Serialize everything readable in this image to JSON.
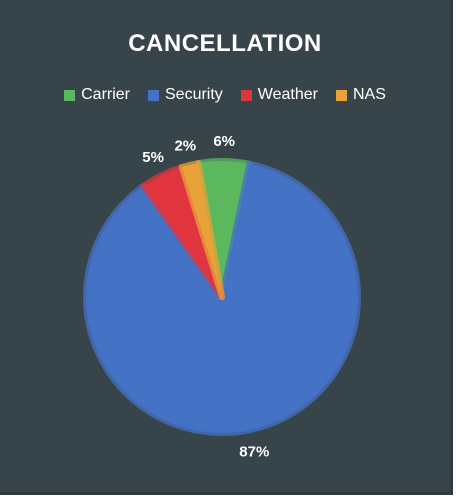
{
  "chart_data": {
    "type": "pie",
    "title": "CANCELLATION",
    "categories": [
      "Carrier",
      "Security",
      "Weather",
      "NAS"
    ],
    "values": [
      6,
      87,
      5,
      2
    ],
    "data_labels": [
      "6%",
      "87%",
      "5%",
      "2%"
    ],
    "colors": [
      "#5cb85c",
      "#4472c4",
      "#e0343f",
      "#e8a23a"
    ],
    "legend_position": "top"
  }
}
